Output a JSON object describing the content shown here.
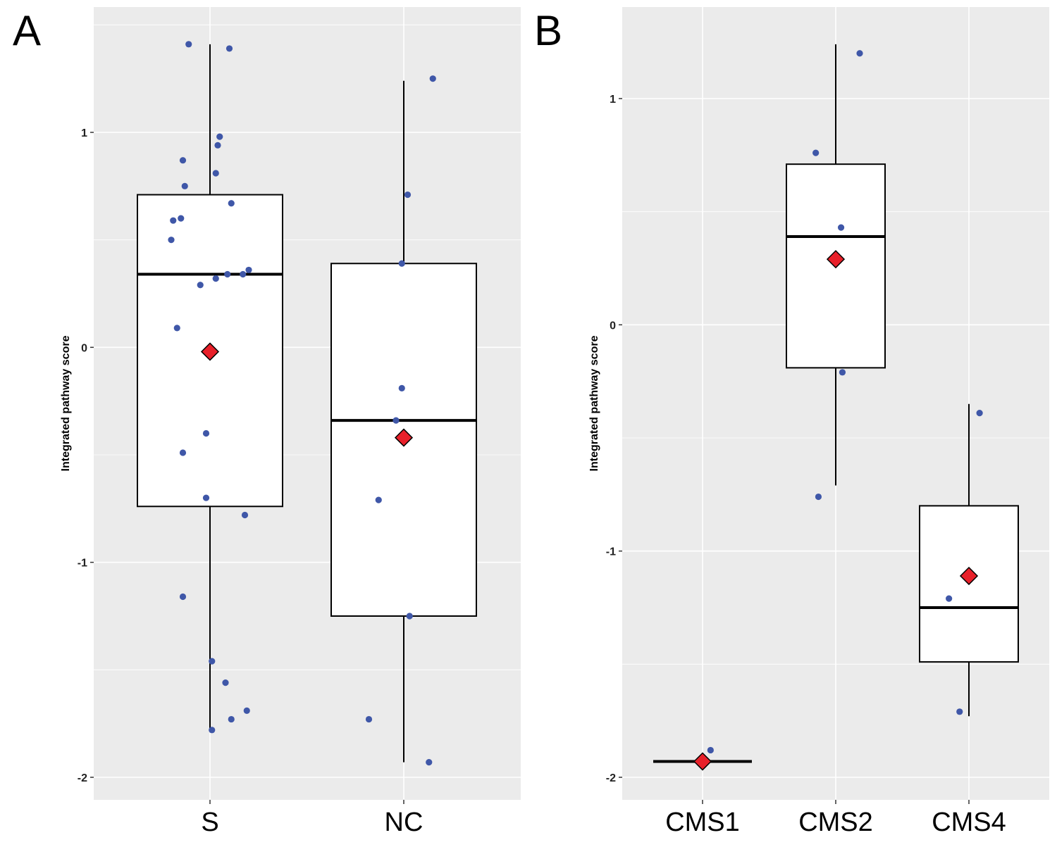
{
  "chart_data": [
    {
      "panel": "A",
      "type": "box",
      "title": "",
      "xlabel": "",
      "ylabel": "Integrated pathway score",
      "ylim": [
        -2.1,
        1.6
      ],
      "yticks": [
        -2,
        -1,
        0,
        1
      ],
      "grid": "on",
      "categories": [
        "S",
        "NC"
      ],
      "boxes": [
        {
          "category": "S",
          "q1": -0.74,
          "median": 0.34,
          "q3": 0.71,
          "whisker_low": -1.78,
          "whisker_high": 1.41,
          "mean": -0.02
        },
        {
          "category": "NC",
          "q1": -1.25,
          "median": -0.34,
          "q3": 0.39,
          "whisker_low": -1.93,
          "whisker_high": 1.24,
          "mean": -0.42
        }
      ],
      "points": [
        {
          "category": "S",
          "x_offset": -0.11,
          "y": 1.41
        },
        {
          "category": "S",
          "x_offset": 0.1,
          "y": 1.39
        },
        {
          "category": "S",
          "x_offset": 0.05,
          "y": 0.98
        },
        {
          "category": "S",
          "x_offset": 0.04,
          "y": 0.94
        },
        {
          "category": "S",
          "x_offset": -0.14,
          "y": 0.87
        },
        {
          "category": "S",
          "x_offset": 0.03,
          "y": 0.81
        },
        {
          "category": "S",
          "x_offset": -0.13,
          "y": 0.75
        },
        {
          "category": "S",
          "x_offset": 0.11,
          "y": 0.67
        },
        {
          "category": "S",
          "x_offset": -0.15,
          "y": 0.6
        },
        {
          "category": "S",
          "x_offset": -0.19,
          "y": 0.59
        },
        {
          "category": "S",
          "x_offset": -0.2,
          "y": 0.5
        },
        {
          "category": "S",
          "x_offset": 0.2,
          "y": 0.36
        },
        {
          "category": "S",
          "x_offset": 0.09,
          "y": 0.34
        },
        {
          "category": "S",
          "x_offset": 0.17,
          "y": 0.34
        },
        {
          "category": "S",
          "x_offset": 0.03,
          "y": 0.32
        },
        {
          "category": "S",
          "x_offset": -0.05,
          "y": 0.29
        },
        {
          "category": "S",
          "x_offset": -0.17,
          "y": 0.09
        },
        {
          "category": "S",
          "x_offset": -0.02,
          "y": -0.4
        },
        {
          "category": "S",
          "x_offset": -0.14,
          "y": -0.49
        },
        {
          "category": "S",
          "x_offset": -0.02,
          "y": -0.7
        },
        {
          "category": "S",
          "x_offset": 0.18,
          "y": -0.78
        },
        {
          "category": "S",
          "x_offset": -0.14,
          "y": -1.16
        },
        {
          "category": "S",
          "x_offset": 0.01,
          "y": -1.46
        },
        {
          "category": "S",
          "x_offset": 0.08,
          "y": -1.56
        },
        {
          "category": "S",
          "x_offset": 0.19,
          "y": -1.69
        },
        {
          "category": "S",
          "x_offset": 0.11,
          "y": -1.73
        },
        {
          "category": "S",
          "x_offset": 0.01,
          "y": -1.78
        },
        {
          "category": "NC",
          "x_offset": 0.15,
          "y": 1.25
        },
        {
          "category": "NC",
          "x_offset": 0.02,
          "y": 0.71
        },
        {
          "category": "NC",
          "x_offset": -0.01,
          "y": 0.39
        },
        {
          "category": "NC",
          "x_offset": -0.01,
          "y": -0.19
        },
        {
          "category": "NC",
          "x_offset": -0.04,
          "y": -0.34
        },
        {
          "category": "NC",
          "x_offset": -0.13,
          "y": -0.71
        },
        {
          "category": "NC",
          "x_offset": 0.03,
          "y": -1.25
        },
        {
          "category": "NC",
          "x_offset": -0.18,
          "y": -1.73
        },
        {
          "category": "NC",
          "x_offset": 0.13,
          "y": -1.93
        }
      ]
    },
    {
      "panel": "B",
      "type": "box",
      "title": "",
      "xlabel": "",
      "ylabel": "Integrated pathway score",
      "ylim": [
        -2.1,
        1.4
      ],
      "yticks": [
        -2,
        -1,
        0,
        1
      ],
      "grid": "on",
      "categories": [
        "CMS1",
        "CMS2",
        "CMS4"
      ],
      "boxes": [
        {
          "category": "CMS1",
          "q1": -1.93,
          "median": -1.93,
          "q3": -1.93,
          "whisker_low": -1.93,
          "whisker_high": -1.93,
          "mean": -1.93
        },
        {
          "category": "CMS2",
          "q1": -0.19,
          "median": 0.39,
          "q3": 0.71,
          "whisker_low": -0.71,
          "whisker_high": 1.24,
          "mean": 0.29
        },
        {
          "category": "CMS4",
          "q1": -1.49,
          "median": -1.25,
          "q3": -0.8,
          "whisker_low": -1.73,
          "whisker_high": -0.35,
          "mean": -1.11
        }
      ],
      "points": [
        {
          "category": "CMS1",
          "x_offset": 0.06,
          "y": -1.88
        },
        {
          "category": "CMS2",
          "x_offset": 0.18,
          "y": 1.2
        },
        {
          "category": "CMS2",
          "x_offset": -0.15,
          "y": 0.76
        },
        {
          "category": "CMS2",
          "x_offset": 0.04,
          "y": 0.43
        },
        {
          "category": "CMS2",
          "x_offset": 0.05,
          "y": -0.21
        },
        {
          "category": "CMS2",
          "x_offset": -0.13,
          "y": -0.76
        },
        {
          "category": "CMS4",
          "x_offset": 0.08,
          "y": -0.39
        },
        {
          "category": "CMS4",
          "x_offset": -0.15,
          "y": -1.21
        },
        {
          "category": "CMS4",
          "x_offset": -0.07,
          "y": -1.71
        }
      ]
    }
  ],
  "colors": {
    "panel_background": "#EBEBEB",
    "points": "#3F57A8",
    "mean_marker": "#E8202A",
    "box_fill": "#FFFFFF"
  }
}
